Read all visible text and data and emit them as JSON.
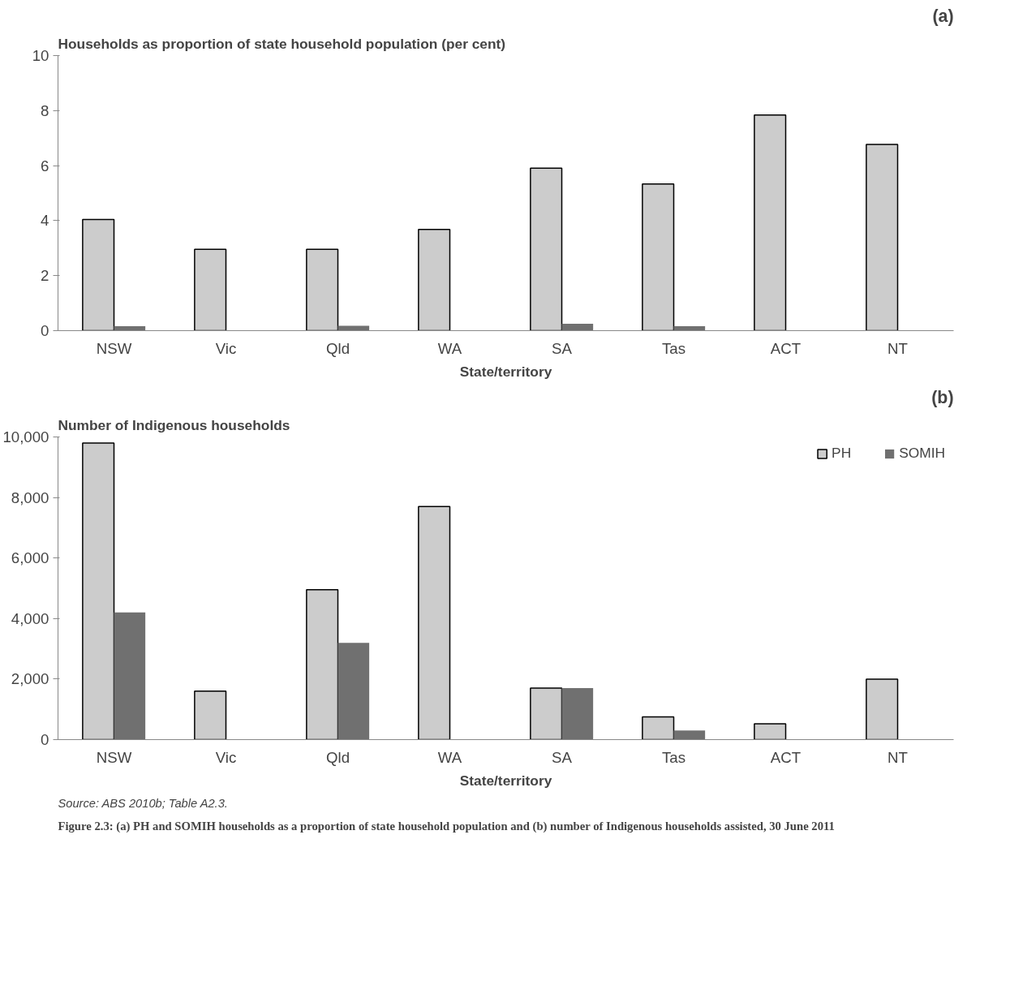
{
  "chart_data": [
    {
      "type": "bar",
      "title": "(a)",
      "ylabel": "Households as proportion of state household population (per cent)",
      "xlabel": "State/territory",
      "categories": [
        "NSW",
        "Vic",
        "Qld",
        "WA",
        "SA",
        "Tas",
        "ACT",
        "NT"
      ],
      "series": [
        {
          "color": "#cccccc",
          "values": [
            4.04,
            2.96,
            2.96,
            3.68,
            5.91,
            5.33,
            7.84,
            6.77
          ]
        },
        {
          "color": "#707070",
          "values": [
            0.16,
            null,
            0.18,
            null,
            0.25,
            0.16,
            null,
            null
          ]
        }
      ],
      "ylim": [
        0,
        10
      ],
      "yticks": [
        0,
        2,
        4,
        6,
        8,
        10
      ],
      "grid": false
    },
    {
      "type": "bar",
      "title": "(b)",
      "ylabel": "Number of Indigenous households",
      "xlabel": "State/territory",
      "categories": [
        "NSW",
        "Vic",
        "Qld",
        "WA",
        "SA",
        "Tas",
        "ACT",
        "NT"
      ],
      "series": [
        {
          "name": "PH",
          "color": "#cccccc",
          "values": [
            9800,
            1600,
            4950,
            7700,
            1700,
            750,
            520,
            2000
          ]
        },
        {
          "name": "SOMIH",
          "color": "#707070",
          "values": [
            4200,
            null,
            3200,
            null,
            1700,
            300,
            null,
            null
          ]
        }
      ],
      "ylim": [
        0,
        10000
      ],
      "yticks": [
        0,
        {
          "value": 2000,
          "label": "2,000"
        },
        {
          "value": 4000,
          "label": "4,000"
        },
        {
          "value": 6000,
          "label": "6,000"
        },
        {
          "value": 8000,
          "label": "8,000"
        },
        {
          "value": 10000,
          "label": "10,000"
        }
      ],
      "grid": false,
      "legend": "top right",
      "annotations": [
        "Source: ABS 2010b; Table A2.3.",
        "Figure 2.3: (a) PH and SOMIH households as a proportion of state household population and (b) number of Indigenous households assisted, 30 June 2011"
      ]
    }
  ]
}
